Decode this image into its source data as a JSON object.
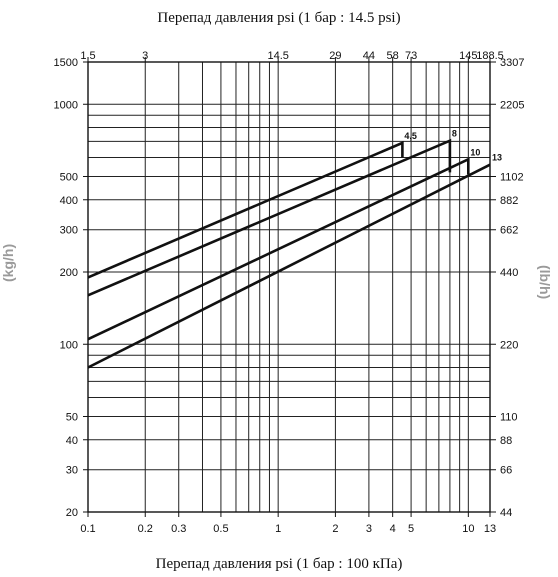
{
  "chart_data": {
    "type": "line",
    "title_top": "Перепад давления psi (1 бар : 14.5 psi)",
    "title_bottom": "Перепад давления psi (1 бар : 100 кПа)",
    "ylabel_left": "(kg/h)",
    "ylabel_right": "(lb/h)",
    "x_scale": "log",
    "y_scale": "log",
    "xlim": [
      0.1,
      13
    ],
    "ylim": [
      20,
      1500
    ],
    "grid": true,
    "x_ticks_bottom": [
      {
        "value": 0.1,
        "label": "0.1"
      },
      {
        "value": 0.2,
        "label": "0.2"
      },
      {
        "value": 0.3,
        "label": "0.3"
      },
      {
        "value": 0.5,
        "label": "0.5"
      },
      {
        "value": 1,
        "label": "1"
      },
      {
        "value": 2,
        "label": "2"
      },
      {
        "value": 3,
        "label": "3"
      },
      {
        "value": 4,
        "label": "4"
      },
      {
        "value": 5,
        "label": "5"
      },
      {
        "value": 10,
        "label": "10"
      },
      {
        "value": 13,
        "label": "13"
      }
    ],
    "x_ticks_top": [
      {
        "value": 0.1,
        "label": "1.5"
      },
      {
        "value": 0.2,
        "label": "3"
      },
      {
        "value": 1,
        "label": "14.5"
      },
      {
        "value": 2,
        "label": "29"
      },
      {
        "value": 3,
        "label": "44"
      },
      {
        "value": 4,
        "label": "58"
      },
      {
        "value": 5,
        "label": "73"
      },
      {
        "value": 10,
        "label": "145"
      },
      {
        "value": 13,
        "label": "188.5"
      }
    ],
    "y_ticks_left": [
      {
        "value": 1500,
        "label": "1500"
      },
      {
        "value": 1000,
        "label": "1000"
      },
      {
        "value": 500,
        "label": "500"
      },
      {
        "value": 400,
        "label": "400"
      },
      {
        "value": 300,
        "label": "300"
      },
      {
        "value": 200,
        "label": "200"
      },
      {
        "value": 100,
        "label": "100"
      },
      {
        "value": 50,
        "label": "50"
      },
      {
        "value": 40,
        "label": "40"
      },
      {
        "value": 30,
        "label": "30"
      },
      {
        "value": 20,
        "label": "20"
      }
    ],
    "y_ticks_right": [
      {
        "value": 1500,
        "label": "3307"
      },
      {
        "value": 1000,
        "label": "2205"
      },
      {
        "value": 500,
        "label": "1102"
      },
      {
        "value": 400,
        "label": "882"
      },
      {
        "value": 300,
        "label": "662"
      },
      {
        "value": 200,
        "label": "440"
      },
      {
        "value": 100,
        "label": "220"
      },
      {
        "value": 50,
        "label": "110"
      },
      {
        "value": 40,
        "label": "88"
      },
      {
        "value": 30,
        "label": "66"
      },
      {
        "value": 20,
        "label": "44"
      }
    ],
    "series": [
      {
        "name": "4,5",
        "points": [
          [
            0.1,
            190
          ],
          [
            4.5,
            690
          ],
          [
            4.5,
            600
          ]
        ]
      },
      {
        "name": "8",
        "points": [
          [
            0.1,
            160
          ],
          [
            8.0,
            705
          ],
          [
            8.0,
            520
          ]
        ]
      },
      {
        "name": "10",
        "points": [
          [
            0.1,
            105
          ],
          [
            10.0,
            590
          ],
          [
            10.0,
            510
          ]
        ]
      },
      {
        "name": "13",
        "points": [
          [
            0.1,
            80
          ],
          [
            13.0,
            560
          ]
        ]
      }
    ]
  }
}
